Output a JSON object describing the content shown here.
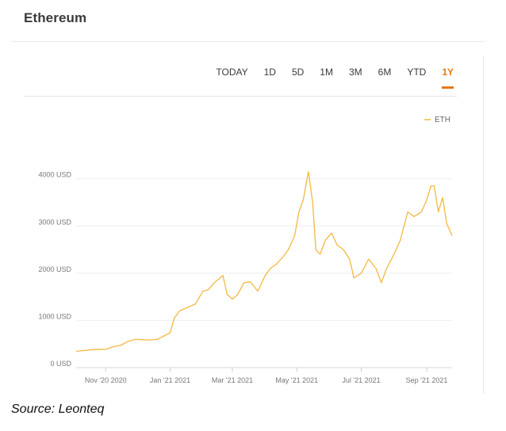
{
  "title": "Ethereum",
  "tabs": [
    "TODAY",
    "1D",
    "5D",
    "1M",
    "3M",
    "6M",
    "YTD",
    "1Y"
  ],
  "active_tab": "1Y",
  "source": "Source: Leonteq",
  "colors": {
    "accent": "#e27a17",
    "series": "#f4b841",
    "grid": "#eeeeee"
  },
  "chart_data": {
    "type": "line",
    "legend": {
      "entry": "ETH",
      "position": "top-right"
    },
    "y_tick_labels": [
      "0 USD",
      "1000 USD",
      "2000 USD",
      "3000 USD",
      "4000 USD"
    ],
    "y_ticks": [
      0,
      1000,
      2000,
      3000,
      4000
    ],
    "ylim": [
      0,
      4800
    ],
    "x_tick_labels": [
      "Nov '20 2020",
      "Jan '21 2021",
      "Mar '21 2021",
      "May '21 2021",
      "Jul '21 2021",
      "Sep '21 2021"
    ],
    "x_ticks": [
      "2020-11-01",
      "2021-01-01",
      "2021-03-01",
      "2021-05-01",
      "2021-07-01",
      "2021-09-01"
    ],
    "xlim": [
      "2020-10-04",
      "2021-09-25"
    ],
    "grid": "horizontal",
    "series": [
      {
        "name": "ETH",
        "x": [
          "2020-10-04",
          "2020-10-10",
          "2020-10-17",
          "2020-10-24",
          "2020-11-01",
          "2020-11-08",
          "2020-11-15",
          "2020-11-22",
          "2020-11-29",
          "2020-12-06",
          "2020-12-13",
          "2020-12-20",
          "2020-12-27",
          "2021-01-01",
          "2021-01-05",
          "2021-01-10",
          "2021-01-15",
          "2021-01-20",
          "2021-01-25",
          "2021-02-01",
          "2021-02-06",
          "2021-02-12",
          "2021-02-20",
          "2021-02-24",
          "2021-03-01",
          "2021-03-06",
          "2021-03-12",
          "2021-03-18",
          "2021-03-25",
          "2021-04-01",
          "2021-04-06",
          "2021-04-12",
          "2021-04-18",
          "2021-04-23",
          "2021-04-29",
          "2021-05-03",
          "2021-05-07",
          "2021-05-12",
          "2021-05-16",
          "2021-05-19",
          "2021-05-23",
          "2021-05-28",
          "2021-06-03",
          "2021-06-08",
          "2021-06-14",
          "2021-06-20",
          "2021-06-24",
          "2021-07-01",
          "2021-07-08",
          "2021-07-15",
          "2021-07-20",
          "2021-07-25",
          "2021-08-01",
          "2021-08-07",
          "2021-08-14",
          "2021-08-20",
          "2021-08-27",
          "2021-09-01",
          "2021-09-05",
          "2021-09-08",
          "2021-09-12",
          "2021-09-16",
          "2021-09-20",
          "2021-09-25"
        ],
        "values": [
          345,
          360,
          375,
          390,
          385,
          445,
          470,
          555,
          600,
          590,
          585,
          600,
          680,
          740,
          1050,
          1200,
          1250,
          1300,
          1350,
          1620,
          1650,
          1800,
          1950,
          1550,
          1450,
          1550,
          1800,
          1820,
          1620,
          1950,
          2100,
          2200,
          2350,
          2500,
          2800,
          3300,
          3550,
          4150,
          3500,
          2500,
          2400,
          2700,
          2850,
          2600,
          2500,
          2300,
          1900,
          2000,
          2300,
          2100,
          1800,
          2100,
          2400,
          2700,
          3300,
          3200,
          3300,
          3550,
          3850,
          3850,
          3300,
          3600,
          3050,
          2800
        ]
      }
    ]
  }
}
